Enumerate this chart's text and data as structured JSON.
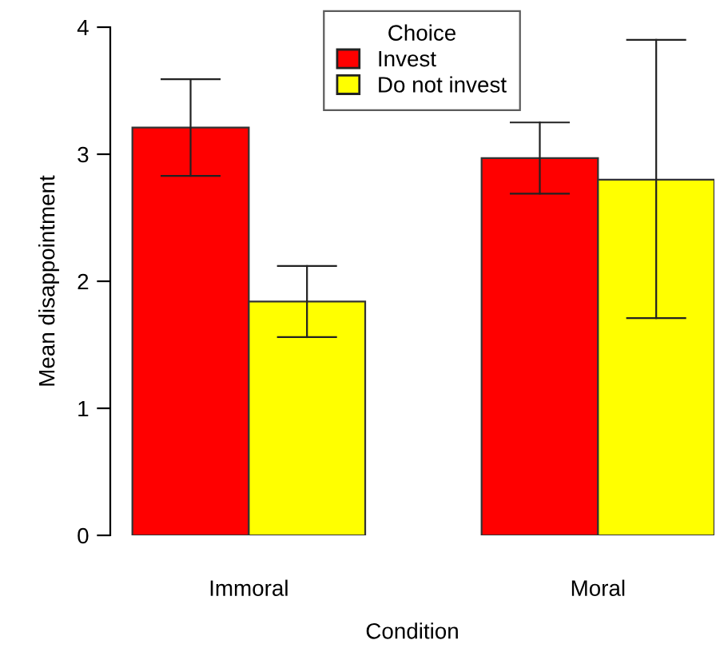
{
  "chart_data": {
    "type": "bar",
    "xlabel": "Condition",
    "ylabel": "Mean disappointment",
    "legend_title": "Choice",
    "legend": "top",
    "categories": [
      "Immoral",
      "Moral"
    ],
    "series": [
      {
        "name": "Invest",
        "color": "#ff0000",
        "values": [
          3.21,
          2.97
        ],
        "errors": [
          [
            2.83,
            3.59
          ],
          [
            2.69,
            3.25
          ]
        ]
      },
      {
        "name": "Do not invest",
        "color": "#ffff00",
        "values": [
          1.84,
          2.8
        ],
        "errors": [
          [
            1.56,
            2.12
          ],
          [
            1.71,
            3.9
          ]
        ]
      }
    ],
    "ylim": [
      0,
      4
    ],
    "yticks": [
      0,
      1,
      2,
      3,
      4
    ],
    "grid": false
  }
}
